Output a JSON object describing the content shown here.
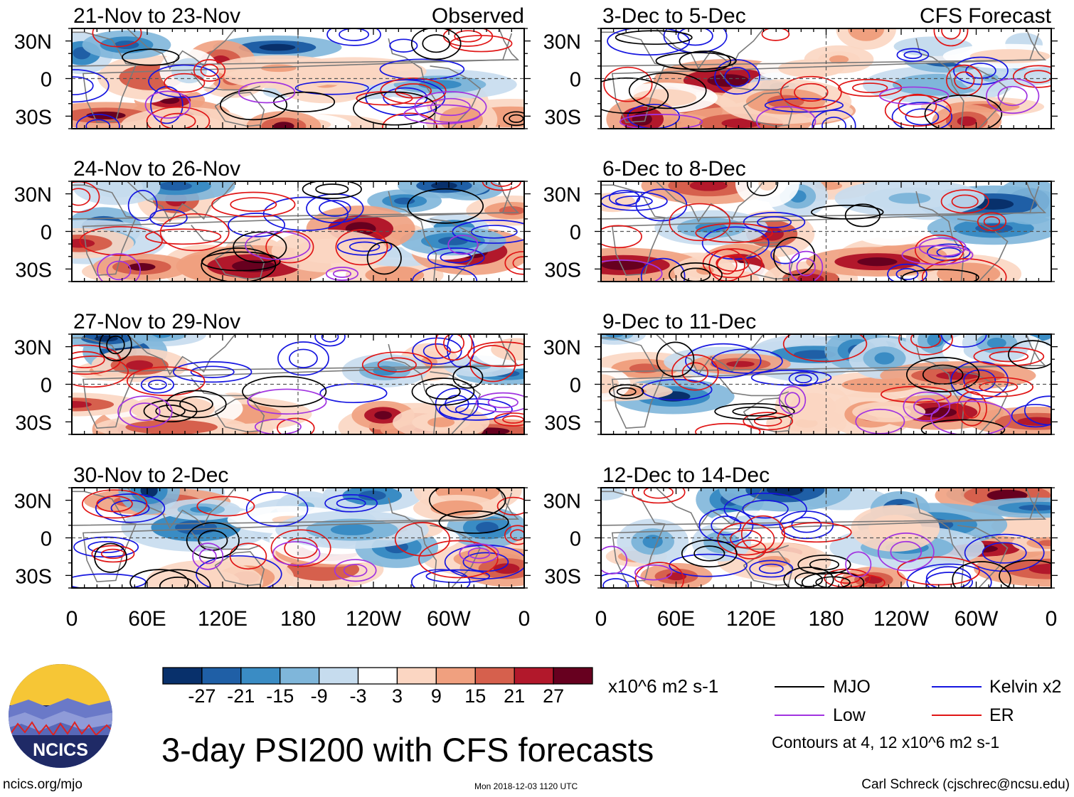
{
  "colors": {
    "scale": [
      "#08306b",
      "#1f5fa6",
      "#3a8cc4",
      "#7fb6da",
      "#c6dcee",
      "#ffffff",
      "#fbd6c2",
      "#f0a07f",
      "#d6604d",
      "#b2182b",
      "#67001f"
    ],
    "mjo": "#000000",
    "kelvin": "#1515e0",
    "low": "#a133e0",
    "er": "#e01515",
    "coast": "#7a7a7a",
    "logo_ring": "#1f2a66",
    "logo_sun": "#f6c636"
  },
  "chart_data": {
    "type": "heatmap",
    "title": "3-day PSI200 with CFS forecasts",
    "observed_label": "Observed",
    "forecast_label": "CFS Forecast",
    "x_ticks": [
      "0",
      "60E",
      "120E",
      "180",
      "120W",
      "60W",
      "0"
    ],
    "y_ticks": [
      "30N",
      "0",
      "30S"
    ],
    "lat_range": [
      -40,
      40
    ],
    "lon_range": [
      0,
      360
    ],
    "panels_observed": [
      "21-Nov to 23-Nov",
      "24-Nov to 26-Nov",
      "27-Nov to 29-Nov",
      "30-Nov to 2-Dec"
    ],
    "panels_forecast": [
      "3-Dec to 5-Dec",
      "6-Dec to 8-Dec",
      "9-Dec to 11-Dec",
      "12-Dec to 14-Dec"
    ],
    "colorbar": {
      "labels": [
        "-27",
        "-21",
        "-15",
        "-9",
        "-3",
        "3",
        "9",
        "15",
        "21",
        "27"
      ],
      "units": "x10^6 m2 s-1"
    },
    "legend": [
      {
        "name": "MJO",
        "color_key": "mjo"
      },
      {
        "name": "Kelvin x2",
        "color_key": "kelvin"
      },
      {
        "name": "Low",
        "color_key": "low"
      },
      {
        "name": "ER",
        "color_key": "er"
      }
    ],
    "contour_note": "Contours at 4, 12 x10^6 m2 s-1"
  },
  "logo": {
    "text": "NCICS"
  },
  "footer": {
    "site": "ncics.org/mjo",
    "timestamp": "Mon 2018-12-03 1120 UTC",
    "credit": "Carl Schreck (cjschrec@ncsu.edu)"
  }
}
